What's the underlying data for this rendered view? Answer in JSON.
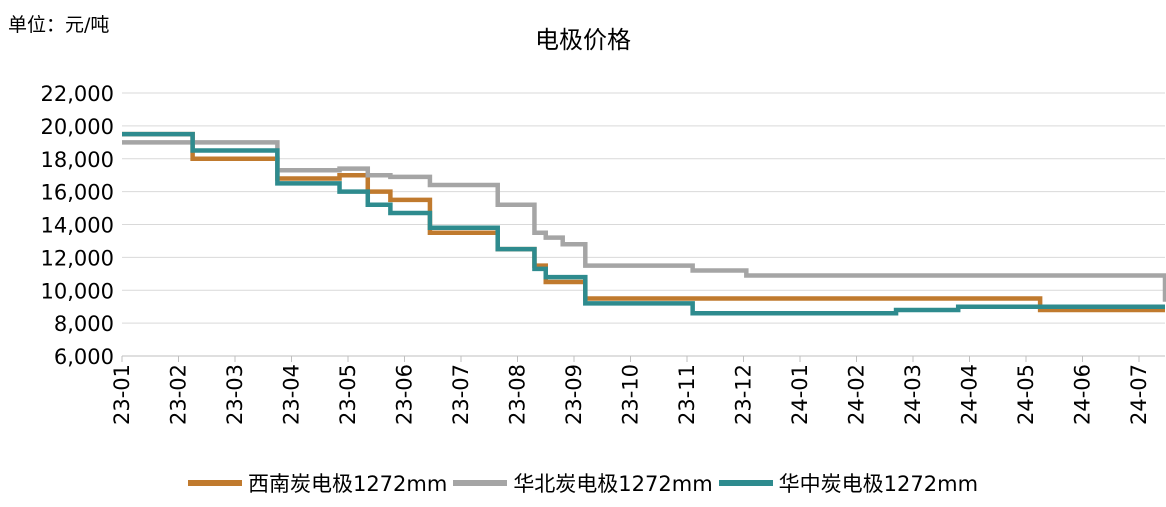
{
  "unit_label": "单位：元/吨",
  "chart_data": {
    "type": "line",
    "title": "电极价格",
    "xlabel": "",
    "ylabel": "",
    "ylim": [
      6000,
      22000
    ],
    "yticks": [
      "6,000",
      "8,000",
      "10,000",
      "12,000",
      "14,000",
      "16,000",
      "18,000",
      "20,000",
      "22,000"
    ],
    "categories": [
      "23-01",
      "23-02",
      "23-03",
      "23-04",
      "23-05",
      "23-06",
      "23-07",
      "23-08",
      "23-09",
      "23-10",
      "23-11",
      "23-12",
      "24-01",
      "24-02",
      "24-03",
      "24-04",
      "24-05",
      "24-06",
      "24-07"
    ],
    "grid": true,
    "legend_position": "bottom",
    "step": true,
    "series": [
      {
        "name": "西南炭电极1272mm",
        "color": "#C07A2E",
        "points": [
          [
            0,
            19500
          ],
          [
            1.25,
            18000
          ],
          [
            2.75,
            16800
          ],
          [
            3.85,
            17000
          ],
          [
            4.35,
            16000
          ],
          [
            4.75,
            15500
          ],
          [
            5.45,
            13500
          ],
          [
            6.65,
            12500
          ],
          [
            7.3,
            11500
          ],
          [
            7.5,
            10500
          ],
          [
            8.2,
            9500
          ],
          [
            10.1,
            9500
          ],
          [
            16.25,
            8800
          ],
          [
            18.7,
            8800
          ]
        ]
      },
      {
        "name": "华北炭电极1272mm",
        "color": "#A5A5A5",
        "points": [
          [
            0,
            19000
          ],
          [
            1.25,
            19000
          ],
          [
            2.75,
            17300
          ],
          [
            3.85,
            17400
          ],
          [
            4.35,
            17000
          ],
          [
            4.75,
            16900
          ],
          [
            5.45,
            16400
          ],
          [
            6.65,
            15200
          ],
          [
            7.3,
            13500
          ],
          [
            7.5,
            13200
          ],
          [
            7.8,
            12800
          ],
          [
            8.2,
            11500
          ],
          [
            10.1,
            11200
          ],
          [
            11.05,
            10900
          ],
          [
            18.65,
            10900
          ],
          [
            18.7,
            9300
          ]
        ]
      },
      {
        "name": "华中炭电极1272mm",
        "color": "#2E8B8E",
        "points": [
          [
            0,
            19500
          ],
          [
            1.25,
            18500
          ],
          [
            2.75,
            16500
          ],
          [
            3.85,
            16000
          ],
          [
            4.35,
            15200
          ],
          [
            4.75,
            14700
          ],
          [
            5.45,
            13800
          ],
          [
            6.65,
            12500
          ],
          [
            7.3,
            11300
          ],
          [
            7.5,
            10800
          ],
          [
            8.2,
            9200
          ],
          [
            10.1,
            8600
          ],
          [
            13.7,
            8800
          ],
          [
            14.8,
            9000
          ],
          [
            18.7,
            9000
          ]
        ]
      }
    ]
  }
}
